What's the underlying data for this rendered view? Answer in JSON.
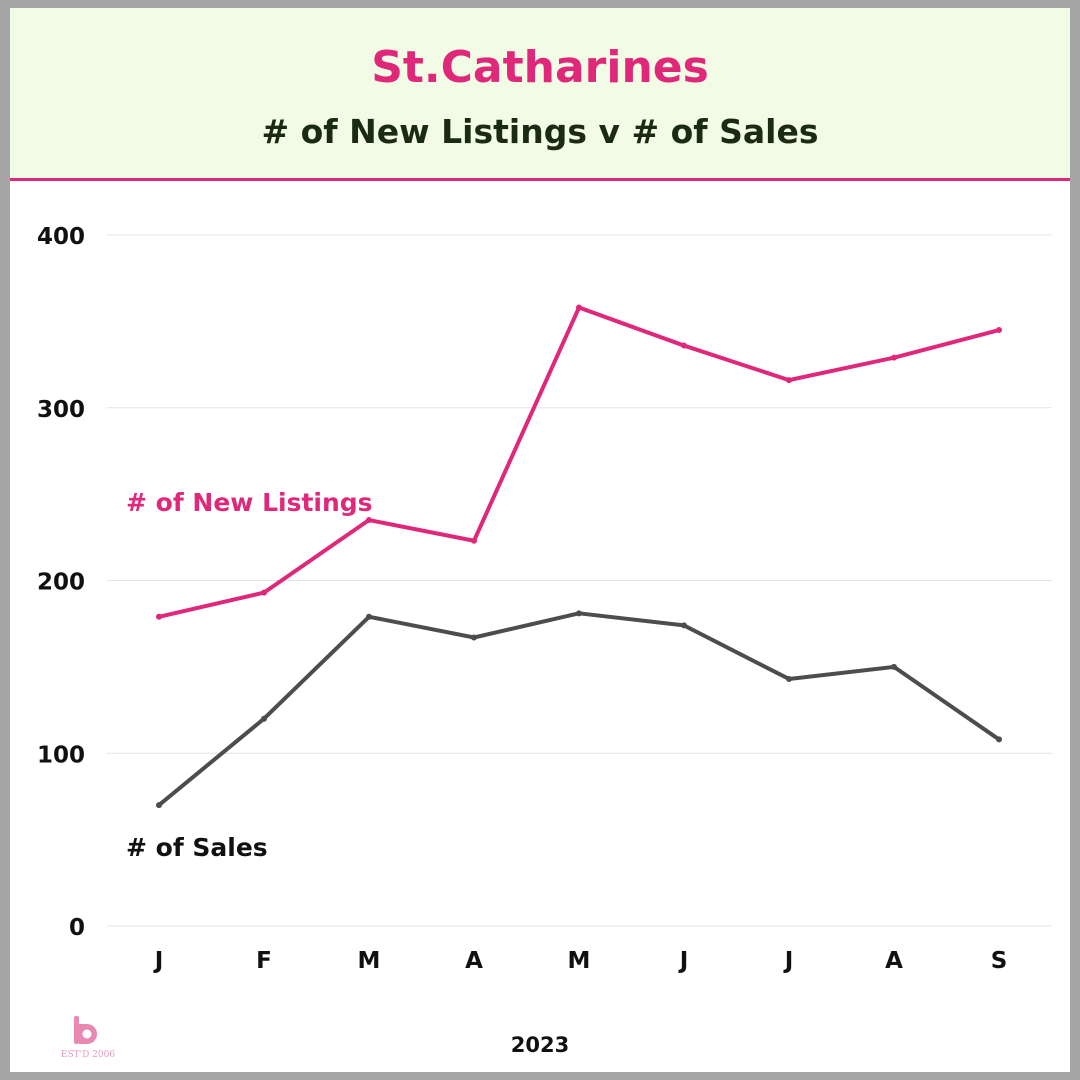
{
  "header": {
    "title": "St.Catharines",
    "subtitle": "# of New Listings v # of Sales"
  },
  "logo": {
    "text": "EST'D 2006"
  },
  "colors": {
    "accent": "#e0287a",
    "sales": "#4d4d4d",
    "header_bg": "#f1fbe6",
    "frame": "#a6a6a6"
  },
  "chart_data": {
    "type": "line",
    "title": "# of New Listings v # of Sales",
    "xlabel": "2023",
    "ylabel": "",
    "categories": [
      "J",
      "F",
      "M",
      "A",
      "M",
      "J",
      "J",
      "A",
      "S"
    ],
    "ylim": [
      0,
      400
    ],
    "yticks": [
      0,
      100,
      200,
      300,
      400
    ],
    "grid": true,
    "legend": "inline labels",
    "series": [
      {
        "name": "# of New Listings",
        "color": "#e0287a",
        "values": [
          179,
          193,
          235,
          223,
          358,
          336,
          316,
          329,
          345
        ]
      },
      {
        "name": "# of Sales",
        "color": "#4d4d4d",
        "values": [
          70,
          120,
          179,
          167,
          181,
          174,
          143,
          150,
          108
        ]
      }
    ]
  }
}
